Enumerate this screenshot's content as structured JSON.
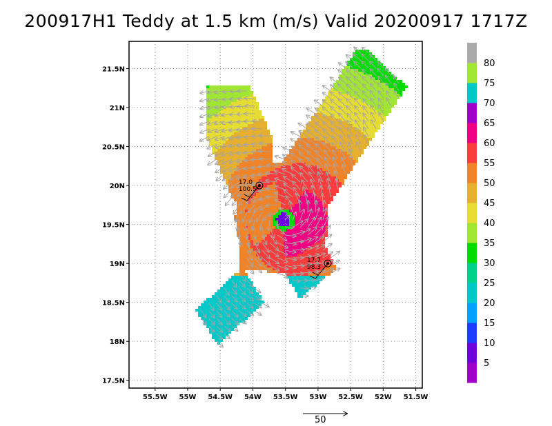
{
  "chart_data": {
    "type": "vector-field map",
    "title": "200917H1  Teddy at 1.5 km (m/s) Valid 20200917  1717Z",
    "x_ticks": [
      "55.5W",
      "55W",
      "54.5W",
      "54W",
      "53.5W",
      "53W",
      "52.5W",
      "52W",
      "51.5W"
    ],
    "x_values": [
      -55.5,
      -55.0,
      -54.5,
      -54.0,
      -53.5,
      -53.0,
      -52.5,
      -52.0,
      -51.5
    ],
    "y_ticks": [
      "21.5N",
      "21N",
      "20.5N",
      "20N",
      "19.5N",
      "19N",
      "18.5N",
      "18N",
      "17.5N"
    ],
    "y_values": [
      21.5,
      21.0,
      20.5,
      20.0,
      19.5,
      19.0,
      18.5,
      18.0,
      17.5
    ],
    "xlim": [
      -55.9,
      -51.4
    ],
    "ylim": [
      17.4,
      21.85
    ],
    "grid": true,
    "storm_center": {
      "lon": -53.55,
      "lat": 19.58
    },
    "colorbar": {
      "labels": [
        "5",
        "10",
        "15",
        "20",
        "25",
        "30",
        "35",
        "40",
        "45",
        "50",
        "55",
        "60",
        "65",
        "70",
        "75",
        "80"
      ],
      "bands": [
        {
          "min": 0,
          "max": 5,
          "color": "#a000c8"
        },
        {
          "min": 5,
          "max": 10,
          "color": "#6e00dc"
        },
        {
          "min": 10,
          "max": 15,
          "color": "#1e3cff"
        },
        {
          "min": 15,
          "max": 20,
          "color": "#00a0ff"
        },
        {
          "min": 20,
          "max": 25,
          "color": "#00c8c8"
        },
        {
          "min": 25,
          "max": 30,
          "color": "#00d28c"
        },
        {
          "min": 30,
          "max": 35,
          "color": "#00dc00"
        },
        {
          "min": 35,
          "max": 40,
          "color": "#a0e632"
        },
        {
          "min": 40,
          "max": 45,
          "color": "#e6dc32"
        },
        {
          "min": 45,
          "max": 50,
          "color": "#e6af2d"
        },
        {
          "min": 50,
          "max": 55,
          "color": "#f08228"
        },
        {
          "min": 55,
          "max": 60,
          "color": "#fa3c3c"
        },
        {
          "min": 60,
          "max": 65,
          "color": "#f00082"
        },
        {
          "min": 65,
          "max": 70,
          "color": "#a000c8"
        },
        {
          "min": 70,
          "max": 75,
          "color": "#00c8c8"
        },
        {
          "min": 75,
          "max": 80,
          "color": "#a0e632"
        },
        {
          "min": 80,
          "max": 85,
          "color": "#aaaaaa"
        }
      ]
    },
    "reference_vector": {
      "label": "50",
      "value": 50
    },
    "observations": [
      {
        "lon": -52.85,
        "lat": 19.0,
        "line1": "17.7",
        "line2": "98.3"
      },
      {
        "lon": -53.9,
        "lat": 20.0,
        "line1": "17.0",
        "line2": "100.5"
      }
    ]
  }
}
